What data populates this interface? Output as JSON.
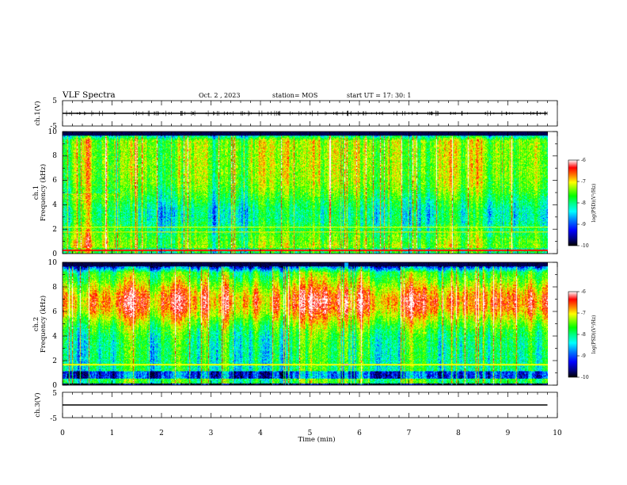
{
  "header": {
    "title": "VLF Spectra",
    "date": "Oct. 2  , 2023",
    "station": "station= MOS",
    "start_ut": "start  UT  =   17: 30: 1"
  },
  "colors": {
    "colormap": [
      "#000000",
      "#000080",
      "#0000ff",
      "#0080ff",
      "#00ffff",
      "#00ff80",
      "#00ff00",
      "#80ff00",
      "#ffff00",
      "#ff8000",
      "#ff0000",
      "#ffffff"
    ]
  },
  "chart_data": [
    {
      "type": "line",
      "panel": "ch1-waveform",
      "ylabel": "ch.1(V)",
      "ylim": [
        -5,
        5
      ],
      "y_ticks": [
        "5",
        "-5"
      ],
      "x": [
        0,
        1,
        2,
        3,
        4,
        5,
        6,
        7,
        8,
        9,
        9.8
      ],
      "values": [
        0,
        0,
        0,
        0,
        0,
        0,
        0,
        0,
        0,
        0,
        0
      ],
      "xlim": [
        0,
        10
      ]
    },
    {
      "type": "heatmap",
      "panel": "ch1-spectrogram",
      "ylabel_line1": "ch.1",
      "ylabel_line2": "Frequency  (kHz)",
      "xlim": [
        0,
        10
      ],
      "data_end_min": 9.8,
      "ylim": [
        0,
        10
      ],
      "y_ticks": [
        "0",
        "2",
        "4",
        "6",
        "8",
        "10"
      ],
      "colorbar": {
        "label": "log(PSD)(V²/Hz)",
        "range": [
          -10,
          -6
        ],
        "ticks": [
          "-6",
          "-7",
          "-8",
          "-9",
          "-10"
        ]
      }
    },
    {
      "type": "heatmap",
      "panel": "ch2-spectrogram",
      "ylabel_line1": "ch.2",
      "ylabel_line2": "Frequency  (kHz)",
      "xlim": [
        0,
        10
      ],
      "data_end_min": 9.8,
      "ylim": [
        0,
        10
      ],
      "y_ticks": [
        "0",
        "2",
        "4",
        "6",
        "8",
        "10"
      ],
      "colorbar": {
        "label": "log(PSD)(V²/Hz)",
        "range": [
          -10,
          -6
        ],
        "ticks": [
          "-6",
          "-7",
          "-8",
          "-9",
          "-10"
        ]
      }
    },
    {
      "type": "line",
      "panel": "ch3-waveform",
      "ylabel": "ch.3(V)",
      "ylim": [
        -5,
        5
      ],
      "y_ticks": [
        "5",
        "-5"
      ],
      "x": [
        0,
        1,
        2,
        3,
        4,
        5,
        6,
        7,
        8,
        9,
        9.8
      ],
      "values": [
        0,
        0,
        0,
        0,
        0,
        0,
        0,
        0,
        0,
        0,
        0
      ],
      "xlim": [
        0,
        10
      ],
      "x_ticks": [
        "0",
        "1",
        "2",
        "3",
        "4",
        "5",
        "6",
        "7",
        "8",
        "9",
        "10"
      ],
      "xlabel": "Time  (min)"
    }
  ]
}
